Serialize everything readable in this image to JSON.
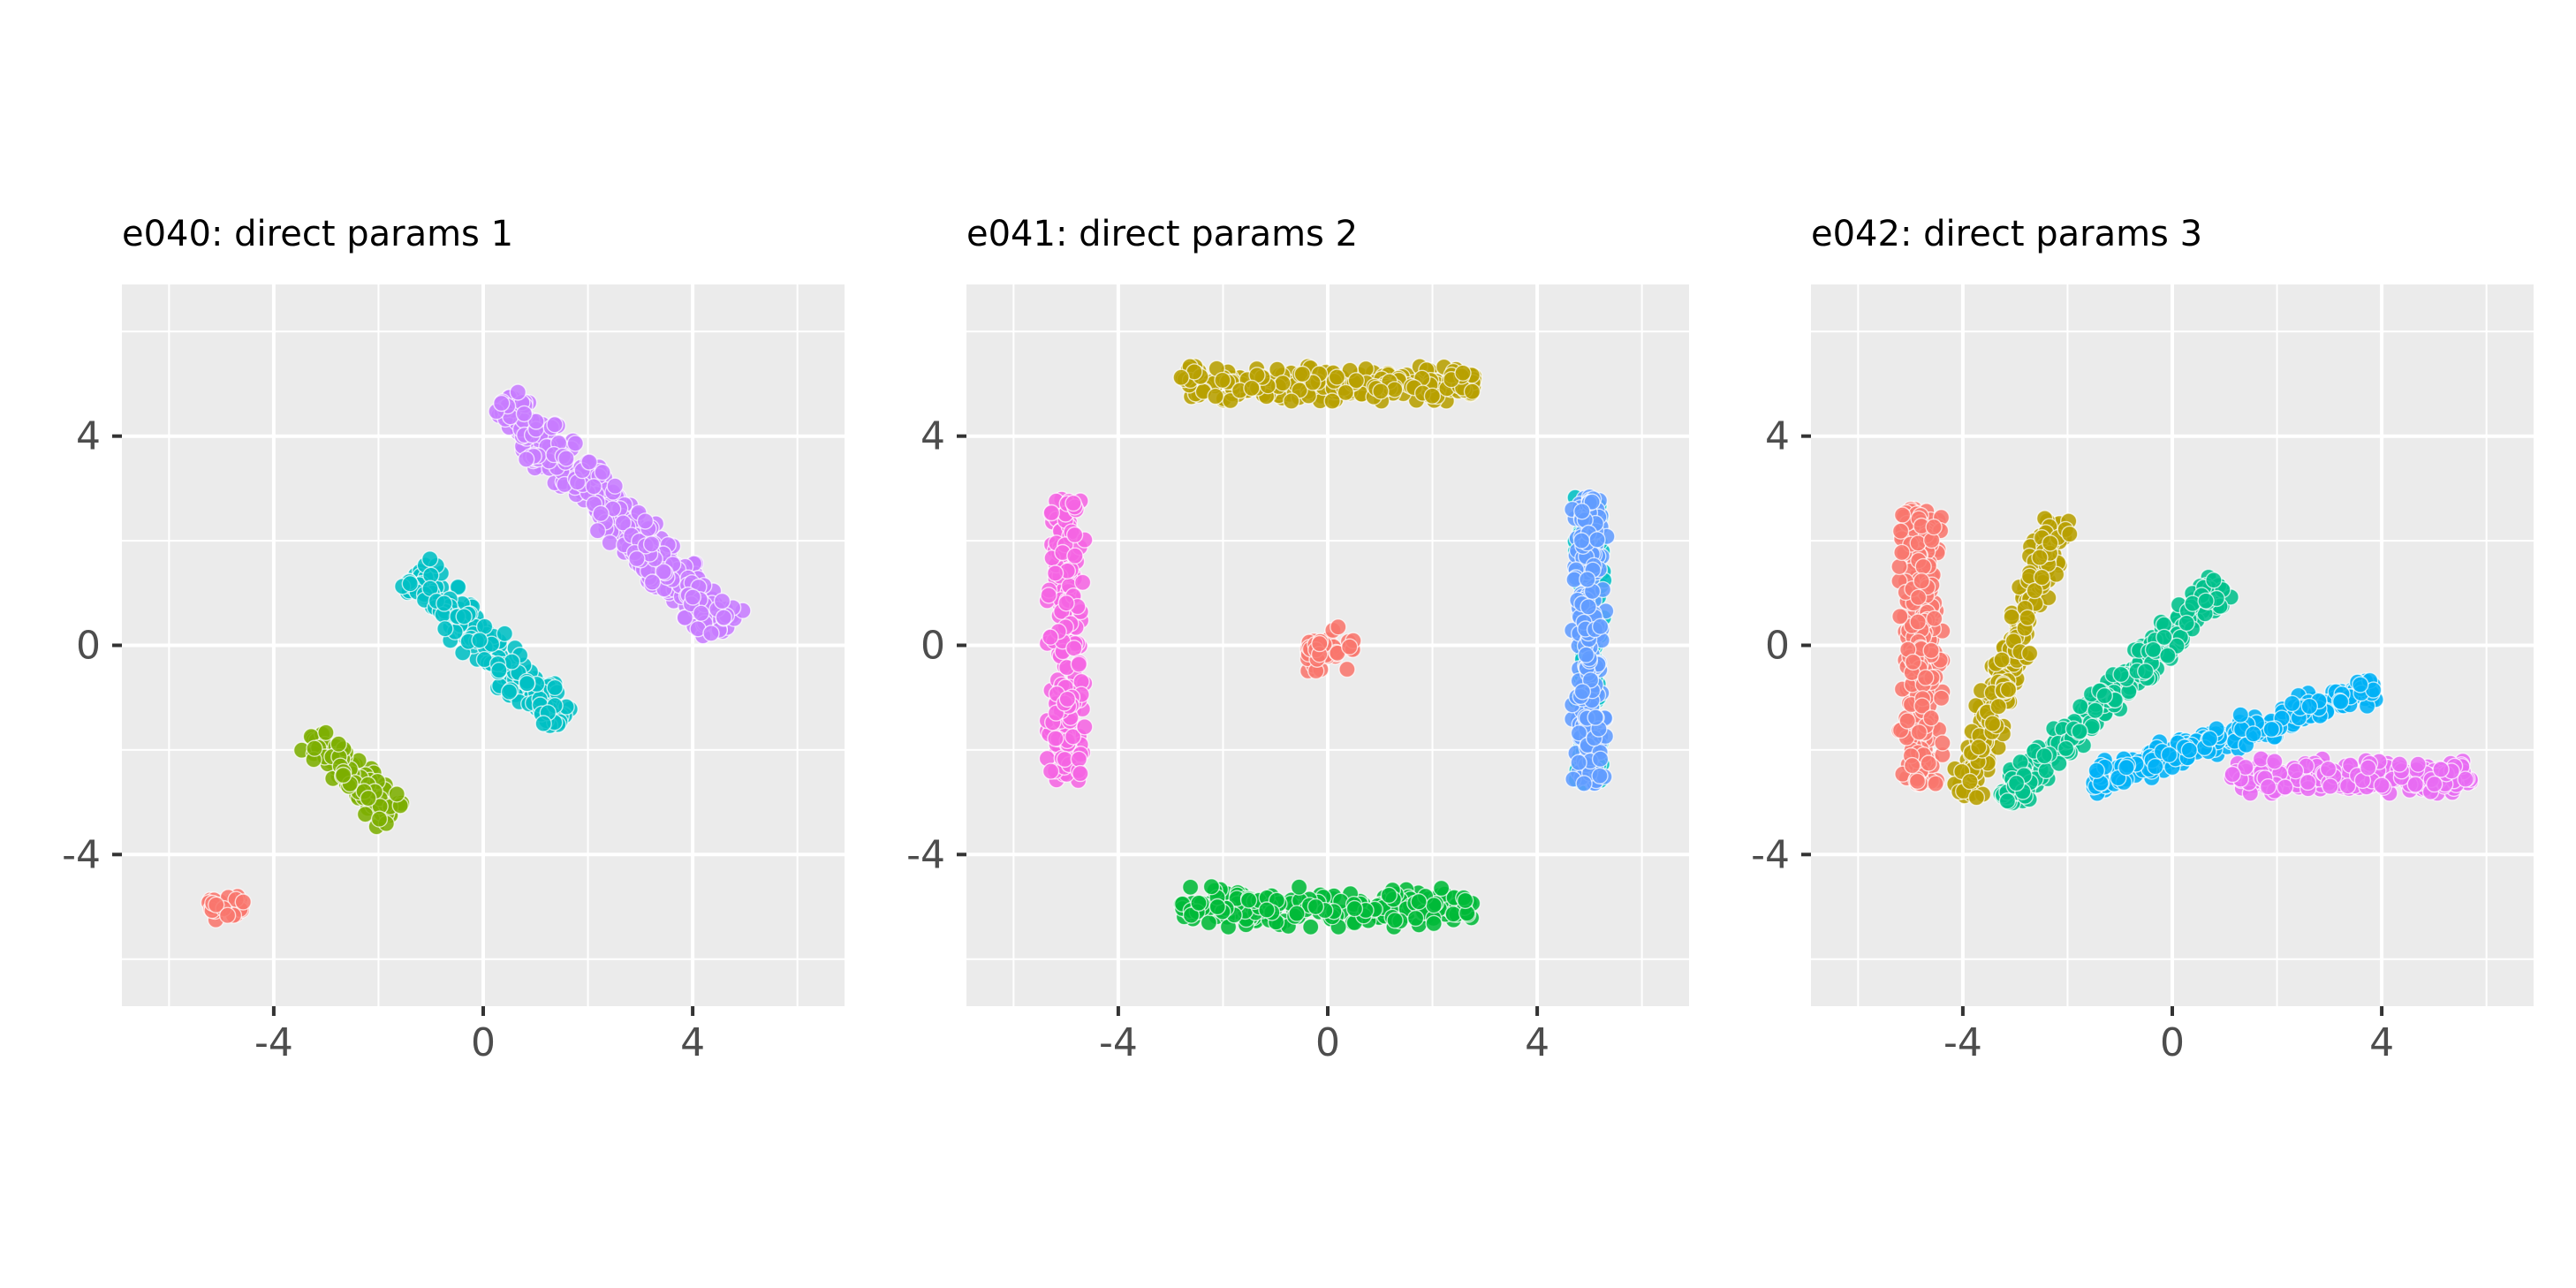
{
  "chart_data": [
    {
      "type": "scatter",
      "title": "e040: direct params 1",
      "xlabel": "",
      "ylabel": "",
      "xlim": [
        -6.9,
        6.9
      ],
      "ylim": [
        -6.9,
        6.9
      ],
      "x_ticks": [
        -4,
        0,
        4
      ],
      "x_tick_labels": [
        "-4",
        "0",
        "4"
      ],
      "y_ticks": [
        -4,
        0,
        4
      ],
      "y_tick_labels": [
        "-4",
        "0",
        "4"
      ],
      "grid": true,
      "legend": "none",
      "clusters": [
        {
          "color": "#f8766d",
          "center": [
            -4.9,
            -5.0
          ],
          "direction": [
            1,
            0
          ],
          "length": 0.7,
          "width": 0.45,
          "count": 30
        },
        {
          "color": "#7cae00",
          "center": [
            -2.5,
            -2.5
          ],
          "direction": [
            0.7071,
            -0.7071
          ],
          "length": 2.2,
          "width": 0.65,
          "count": 110
        },
        {
          "color": "#00bfc4",
          "center": [
            0.1,
            -0.05
          ],
          "direction": [
            0.7071,
            -0.7071
          ],
          "length": 4.0,
          "width": 0.75,
          "count": 230
        },
        {
          "color": "#c77cff",
          "center": [
            2.5,
            2.5
          ],
          "direction": [
            0.7071,
            -0.7071
          ],
          "length": 6.1,
          "width": 0.8,
          "count": 400
        }
      ]
    },
    {
      "type": "scatter",
      "title": "e041: direct params 2",
      "xlabel": "",
      "ylabel": "",
      "xlim": [
        -6.9,
        6.9
      ],
      "ylim": [
        -6.9,
        6.9
      ],
      "x_ticks": [
        -4,
        0,
        4
      ],
      "x_tick_labels": [
        "-4",
        "0",
        "4"
      ],
      "y_ticks": [
        -4,
        0,
        4
      ],
      "y_tick_labels": [
        "-4",
        "0",
        "4"
      ],
      "grid": true,
      "legend": "none",
      "clusters": [
        {
          "color": "#f8766d",
          "center": [
            0.05,
            -0.05
          ],
          "direction": [
            1,
            0
          ],
          "length": 0.9,
          "width": 0.8,
          "count": 45
        },
        {
          "color": "#b79f00",
          "center": [
            0.0,
            5.0
          ],
          "direction": [
            1,
            0
          ],
          "length": 5.6,
          "width": 0.6,
          "count": 260
        },
        {
          "color": "#00ba38",
          "center": [
            0.0,
            -5.0
          ],
          "direction": [
            1,
            0
          ],
          "length": 5.6,
          "width": 0.7,
          "count": 260
        },
        {
          "color": "#00bfc4",
          "center": [
            5.0,
            0.1
          ],
          "direction": [
            0,
            1
          ],
          "length": 5.5,
          "width": 0.5,
          "count": 220
        },
        {
          "color": "#619cff",
          "center": [
            5.0,
            0.1
          ],
          "direction": [
            0,
            1
          ],
          "length": 5.5,
          "width": 0.6,
          "count": 220
        },
        {
          "color": "#f564e3",
          "center": [
            -5.0,
            0.1
          ],
          "direction": [
            0,
            1
          ],
          "length": 5.4,
          "width": 0.65,
          "count": 220
        }
      ]
    },
    {
      "type": "scatter",
      "title": "e042: direct params 3",
      "xlabel": "",
      "ylabel": "",
      "xlim": [
        -6.9,
        6.9
      ],
      "ylim": [
        -6.9,
        6.9
      ],
      "x_ticks": [
        -4,
        0,
        4
      ],
      "x_tick_labels": [
        "-4",
        "0",
        "4"
      ],
      "y_ticks": [
        -4,
        0,
        4
      ],
      "y_tick_labels": [
        "-4",
        "0",
        "4"
      ],
      "grid": true,
      "legend": "none",
      "clusters": [
        {
          "color": "#f8766d",
          "center": [
            -4.8,
            0.0
          ],
          "direction": [
            0,
            1
          ],
          "length": 5.3,
          "width": 0.75,
          "count": 300
        },
        {
          "color": "#b79f00",
          "center": [
            -3.1,
            -0.25
          ],
          "direction": [
            0.3162,
            0.9487
          ],
          "length": 5.7,
          "width": 0.6,
          "count": 280
        },
        {
          "color": "#00c08b",
          "center": [
            -1.15,
            -0.9
          ],
          "direction": [
            0.7071,
            0.7071
          ],
          "length": 5.8,
          "width": 0.6,
          "count": 280
        },
        {
          "color": "#00b0f6",
          "center": [
            1.15,
            -1.7
          ],
          "direction": [
            0.9487,
            0.3162
          ],
          "length": 5.7,
          "width": 0.55,
          "count": 260
        },
        {
          "color": "#e76bf3",
          "center": [
            3.4,
            -2.5
          ],
          "direction": [
            1,
            0
          ],
          "length": 4.6,
          "width": 0.6,
          "count": 260
        }
      ]
    }
  ]
}
